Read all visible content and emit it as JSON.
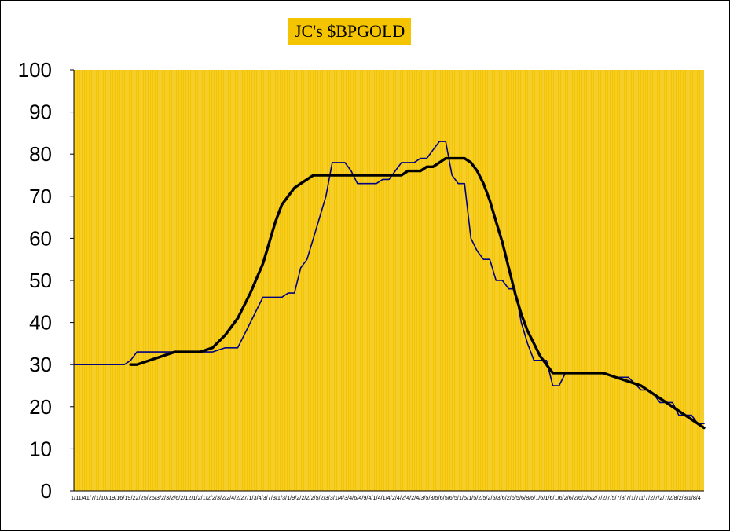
{
  "chart_data": {
    "type": "line",
    "title": "JC's $BPGOLD",
    "xlabel": "",
    "ylabel": "",
    "ylim": [
      0,
      100
    ],
    "yticks": [
      0,
      10,
      20,
      30,
      40,
      50,
      60,
      70,
      80,
      90,
      100
    ],
    "x_tick_label_strip": "1/11/41/7/1/10/19/16/19/22/25/26/3/2/3/2/6/2/12/1/2/1/2/2/3/2/2/4/2/27/1/3/4/3/7/3/1/3/1/9/2/2/2/2/5/2/3/3/1/4/3/4/6/4/9/4/1/4/1/4/2/4/2/4/2/4/3/5/3/5/6/5/6/5/1/5/1/5/2/5/2/5/3/6/2/6/5/6/8/6/1/6/1/6/1/6/2/6/2/6/2/6/2/7/2/7/5/7/8/7/1/7/1/7/2/7/2/7/2/8/2/8/1/8/4",
    "grid": "dense vertical lines",
    "background": "#f5c400",
    "x": [
      0,
      2,
      4,
      6,
      8,
      9,
      10,
      12,
      14,
      16,
      18,
      20,
      22,
      24,
      26,
      28,
      30,
      32,
      33,
      34,
      35,
      36,
      37,
      38,
      39,
      40,
      41,
      42,
      43,
      44,
      45,
      46,
      47,
      48,
      49,
      50,
      51,
      52,
      53,
      54,
      55,
      56,
      57,
      58,
      59,
      60,
      61,
      62,
      63,
      64,
      65,
      66,
      67,
      68,
      69,
      70,
      71,
      72,
      73,
      74,
      75,
      76,
      77,
      78,
      79,
      80,
      81,
      82,
      83,
      84,
      86,
      88,
      90,
      91,
      92,
      93,
      94,
      95,
      96,
      97,
      98,
      99,
      100
    ],
    "series": [
      {
        "values": [
          30,
          30,
          30,
          30,
          30,
          31,
          33,
          33,
          33,
          33,
          33,
          33,
          33,
          34,
          34,
          40,
          46,
          46,
          46,
          47,
          47,
          53,
          55,
          60,
          65,
          70,
          78,
          78,
          78,
          76,
          73,
          73,
          73,
          73,
          74,
          74,
          76,
          78,
          78,
          78,
          79,
          79,
          81,
          83,
          83,
          75,
          73,
          73,
          60,
          57,
          55,
          55,
          50,
          50,
          48,
          48,
          40,
          35,
          31,
          31,
          31,
          25,
          25,
          28,
          28,
          28,
          28,
          28,
          28,
          28,
          27,
          27,
          24,
          24,
          23,
          21,
          21,
          21,
          18,
          18,
          18,
          16,
          16
        ],
        "color": "#000080"
      },
      {
        "values": [
          null,
          null,
          null,
          null,
          null,
          30,
          30,
          31,
          32,
          33,
          33,
          33,
          34,
          37,
          41,
          47,
          54,
          64,
          68,
          70,
          72,
          73,
          74,
          75,
          75,
          75,
          75,
          75,
          75,
          75,
          75,
          75,
          75,
          75,
          75,
          75,
          75,
          75,
          76,
          76,
          76,
          77,
          77,
          78,
          79,
          79,
          79,
          79,
          78,
          76,
          73,
          69,
          64,
          59,
          53,
          47,
          42,
          38,
          35,
          32,
          30,
          28,
          28,
          28,
          28,
          28,
          28,
          28,
          28,
          28,
          27,
          26,
          25,
          24,
          23,
          22,
          21,
          20,
          19,
          18,
          17,
          16,
          15
        ],
        "color": "#000000"
      }
    ]
  }
}
